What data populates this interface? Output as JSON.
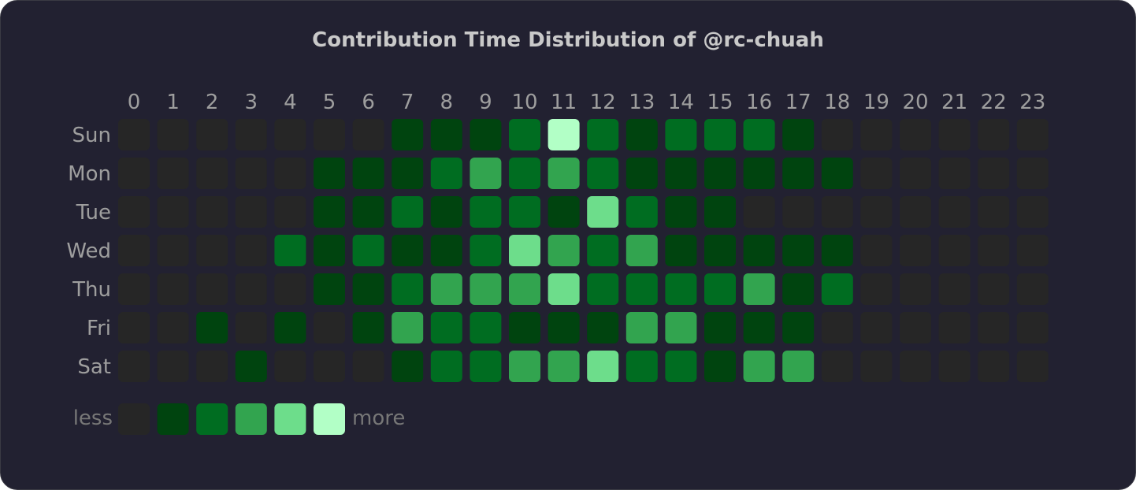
{
  "chart_data": {
    "type": "heatmap",
    "title": "Contribution Time Distribution of @rc-chuah",
    "x": [
      "0",
      "1",
      "2",
      "3",
      "4",
      "5",
      "6",
      "7",
      "8",
      "9",
      "10",
      "11",
      "12",
      "13",
      "14",
      "15",
      "16",
      "17",
      "18",
      "19",
      "20",
      "21",
      "22",
      "23"
    ],
    "y": [
      "Sun",
      "Mon",
      "Tue",
      "Wed",
      "Thu",
      "Fri",
      "Sat"
    ],
    "levels": [
      [
        0,
        0,
        0,
        0,
        0,
        0,
        0,
        1,
        1,
        1,
        2,
        5,
        2,
        1,
        2,
        2,
        2,
        1,
        0,
        0,
        0,
        0,
        0,
        0
      ],
      [
        0,
        0,
        0,
        0,
        0,
        1,
        1,
        1,
        2,
        3,
        2,
        3,
        2,
        1,
        1,
        1,
        1,
        1,
        1,
        0,
        0,
        0,
        0,
        0
      ],
      [
        0,
        0,
        0,
        0,
        0,
        1,
        1,
        2,
        1,
        2,
        2,
        1,
        4,
        2,
        1,
        1,
        0,
        0,
        0,
        0,
        0,
        0,
        0,
        0
      ],
      [
        0,
        0,
        0,
        0,
        2,
        1,
        2,
        1,
        1,
        2,
        4,
        3,
        2,
        3,
        1,
        1,
        1,
        1,
        1,
        0,
        0,
        0,
        0,
        0
      ],
      [
        0,
        0,
        0,
        0,
        0,
        1,
        1,
        2,
        3,
        3,
        3,
        4,
        2,
        2,
        2,
        2,
        3,
        1,
        2,
        0,
        0,
        0,
        0,
        0
      ],
      [
        0,
        0,
        1,
        0,
        1,
        0,
        1,
        3,
        2,
        2,
        1,
        1,
        1,
        3,
        3,
        1,
        1,
        1,
        0,
        0,
        0,
        0,
        0,
        0
      ],
      [
        0,
        0,
        0,
        1,
        0,
        0,
        0,
        1,
        2,
        2,
        3,
        3,
        4,
        2,
        2,
        1,
        3,
        3,
        0,
        0,
        0,
        0,
        0,
        0
      ]
    ],
    "level_colors": [
      "#262626",
      "#00440f",
      "#006d21",
      "#32a44f",
      "#6ddd8b",
      "#b2ffc6"
    ],
    "legend": {
      "low_label": "less",
      "high_label": "more",
      "placement": "bottom-left"
    }
  },
  "colors": {
    "background": "#222131",
    "title": "#c9c9c9",
    "label": "#9e9e9e",
    "legend_text": "#777777"
  }
}
